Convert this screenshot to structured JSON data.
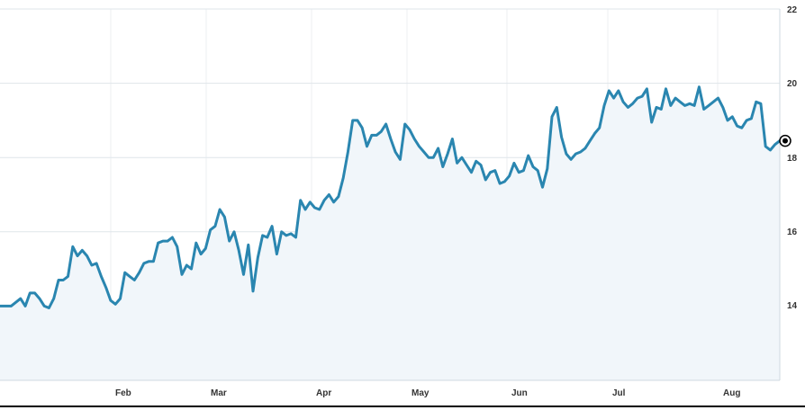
{
  "chart_data": {
    "type": "area",
    "title": "",
    "xlabel": "",
    "ylabel": "",
    "ylim": [
      12,
      22
    ],
    "y_ticks": [
      "22",
      "20",
      "18",
      "16",
      "14"
    ],
    "x_ticks": [
      "Feb",
      "Mar",
      "Apr",
      "May",
      "Jun",
      "Jul",
      "Aug"
    ],
    "grid": true,
    "series": [
      {
        "values": [
          14.0,
          14.0,
          14.1,
          14.2,
          14.0,
          14.35,
          14.35,
          14.2,
          14.0,
          13.95,
          14.2,
          14.7,
          14.7,
          14.8,
          15.6,
          15.35,
          15.5,
          15.35,
          15.1,
          15.15,
          14.8,
          14.5,
          14.15,
          14.05,
          14.2,
          14.9,
          14.8,
          14.7,
          14.9,
          15.15,
          15.2,
          15.2,
          15.7,
          15.75,
          15.75,
          15.85,
          15.6,
          14.85,
          15.1,
          15.0,
          15.7,
          15.4,
          15.55,
          16.05,
          16.15,
          16.6,
          16.4,
          15.75,
          16.0,
          15.5,
          14.85,
          15.65,
          14.4,
          15.3,
          15.9,
          15.85,
          16.15,
          15.4,
          16.0,
          15.9,
          15.95,
          15.85,
          16.85,
          16.6,
          16.8,
          16.65,
          16.6,
          16.85,
          17.0,
          16.8,
          16.95,
          17.45,
          18.15,
          19.0,
          19.0,
          18.8,
          18.3,
          18.6,
          18.6,
          18.7,
          18.9,
          18.5,
          18.15,
          17.95,
          18.9,
          18.75,
          18.5,
          18.3,
          18.15,
          18.0,
          18.0,
          18.25,
          17.75,
          18.1,
          18.5,
          17.85,
          18.0,
          17.8,
          17.6,
          17.9,
          17.8,
          17.4,
          17.6,
          17.65,
          17.3,
          17.35,
          17.5,
          17.85,
          17.6,
          17.65,
          18.05,
          17.75,
          17.65,
          17.2,
          17.7,
          19.1,
          19.35,
          18.55,
          18.1,
          17.95,
          18.1,
          18.15,
          18.25,
          18.45,
          18.65,
          18.8,
          19.4,
          19.8,
          19.6,
          19.8,
          19.5,
          19.35,
          19.45,
          19.6,
          19.65,
          19.85,
          18.95,
          19.35,
          19.3,
          19.85,
          19.4,
          19.6,
          19.5,
          19.4,
          19.45,
          19.4,
          19.9,
          19.3,
          19.4,
          19.5,
          19.6,
          19.35,
          19.0,
          19.1,
          18.85,
          18.8,
          19.0,
          19.05,
          19.5,
          19.45,
          18.3,
          18.2,
          18.35,
          18.45
        ]
      }
    ],
    "last_value": 18.45
  }
}
